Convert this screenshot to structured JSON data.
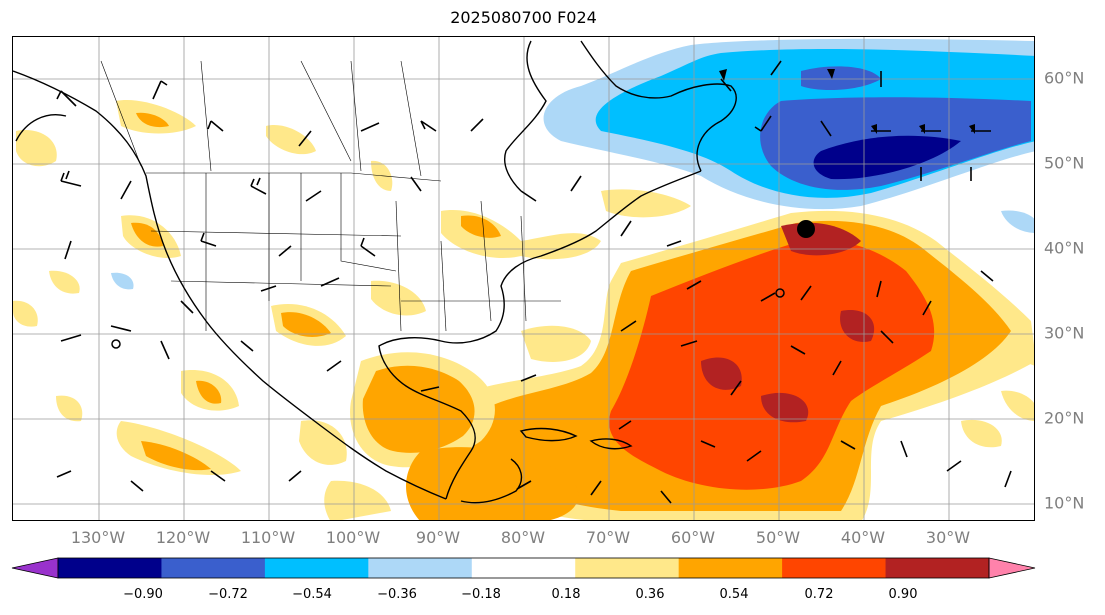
{
  "title": "2025080700 F024",
  "lon_labels": [
    "130°W",
    "120°W",
    "110°W",
    "100°W",
    "90°W",
    "80°W",
    "70°W",
    "60°W",
    "50°W",
    "40°W",
    "30°W"
  ],
  "lat_labels": [
    "60°N",
    "50°N",
    "40°N",
    "30°N",
    "20°N",
    "10°N"
  ],
  "colorbar": {
    "ticks": [
      "−0.90",
      "−0.72",
      "−0.54",
      "−0.36",
      "−0.18",
      "0.18",
      "0.36",
      "0.54",
      "0.72",
      "0.90"
    ],
    "colors": [
      "#9932CC",
      "#00008B",
      "#3A5FCD",
      "#00BFFF",
      "#ADD8F7",
      "#FFFFFF",
      "#FFE88A",
      "#FFA500",
      "#FF4500",
      "#B22222",
      "#FF82AB"
    ]
  },
  "features": {
    "marker": "black-dot-marker",
    "overlay": "wind-barbs"
  }
}
